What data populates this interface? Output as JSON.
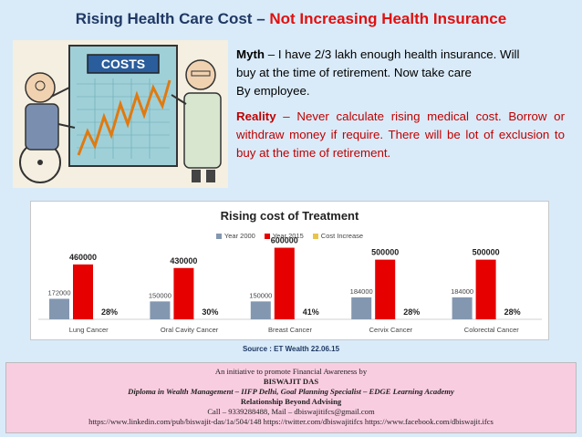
{
  "title": {
    "main": "Rising Health Care Cost",
    "separator": "–",
    "highlight": "Not Increasing Health Insurance"
  },
  "cartoon": {
    "sign_text": "COSTS"
  },
  "myth": {
    "label": "Myth",
    "separator": "–",
    "line1": "I have 2/3 lakh enough health insurance. Will",
    "line2": "buy at the time of retirement. Now take care",
    "line3": "By employee."
  },
  "reality": {
    "label": "Reality",
    "separator": "–",
    "text": "Never calculate rising medical cost. Borrow or withdraw money if require. There will be lot of exclusion to buy at the time of retirement."
  },
  "chart_data": {
    "type": "bar",
    "title": "Rising cost of Treatment",
    "categories": [
      "Lung Cancer",
      "Oral Cavity Cancer",
      "Breast Cancer",
      "Cervix Cancer",
      "Colorectal Cancer"
    ],
    "series": [
      {
        "name": "Year 2000",
        "values": [
          172000,
          150000,
          150000,
          184000,
          184000
        ],
        "color": "#8497b0"
      },
      {
        "name": "Year 2015",
        "values": [
          460000,
          430000,
          600000,
          500000,
          500000
        ],
        "color": "#e60000"
      },
      {
        "name": "Cost Increase",
        "values": [
          "28%",
          "30%",
          "41%",
          "28%",
          "28%"
        ],
        "color": "#e8c44a"
      }
    ],
    "ylim": [
      0,
      650000
    ],
    "grid": false,
    "legend": "top-center"
  },
  "source": "Source : ET Wealth  22.06.15",
  "footer": {
    "line1": "An initiative to promote Financial Awareness by",
    "line2": "BISWAJIT DAS",
    "line3": "Diploma in Wealth Management – IIFP Delhi, Goal Planning Specialist – EDGE Learning Academy",
    "line4": "Relationship Beyond Advising",
    "line5": "Call – 9339288488, Mail – dbiswajitifcs@gmail.com",
    "line6": "https://www.linkedin.com/pub/biswajit-das/1a/504/148      https://twitter.com/dbiswajitifcs    https://www.facebook.com/dbiswajit.ifcs"
  }
}
